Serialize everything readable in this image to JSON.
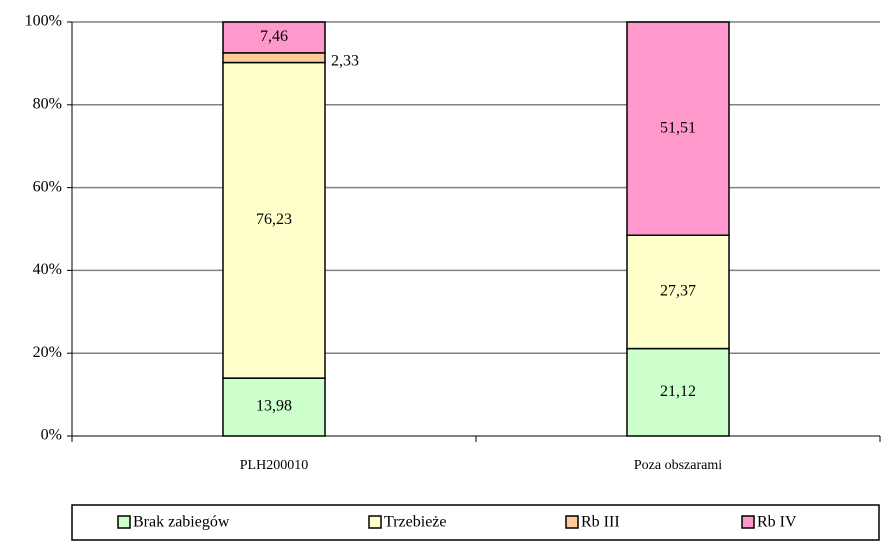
{
  "chart_data": {
    "type": "stacked_bar",
    "categories": [
      "PLH200010",
      "Poza obszarami"
    ],
    "series": [
      {
        "name": "Brak zabiegów",
        "color": "#ccffcc",
        "values": [
          13.98,
          21.12
        ],
        "value_labels": [
          "13,98",
          "21,12"
        ]
      },
      {
        "name": "Trzebieże",
        "color": "#ffffcc",
        "values": [
          76.23,
          27.37
        ],
        "value_labels": [
          "76,23",
          "27,37"
        ]
      },
      {
        "name": "Rb III",
        "color": "#ffcc99",
        "values": [
          2.33,
          null
        ],
        "value_labels": [
          "2,33",
          null
        ]
      },
      {
        "name": "Rb IV",
        "color": "#ff99cc",
        "values": [
          7.46,
          51.51
        ],
        "value_labels": [
          "7,46",
          "51,51"
        ]
      }
    ],
    "ylim": [
      0,
      100
    ],
    "yticks": [
      {
        "value": 0,
        "label": "0%"
      },
      {
        "value": 20,
        "label": "20%"
      },
      {
        "value": 40,
        "label": "40%"
      },
      {
        "value": 60,
        "label": "60%"
      },
      {
        "value": 80,
        "label": "80%"
      },
      {
        "value": 100,
        "label": "100%"
      }
    ],
    "grid": true,
    "legend": "bottom"
  }
}
